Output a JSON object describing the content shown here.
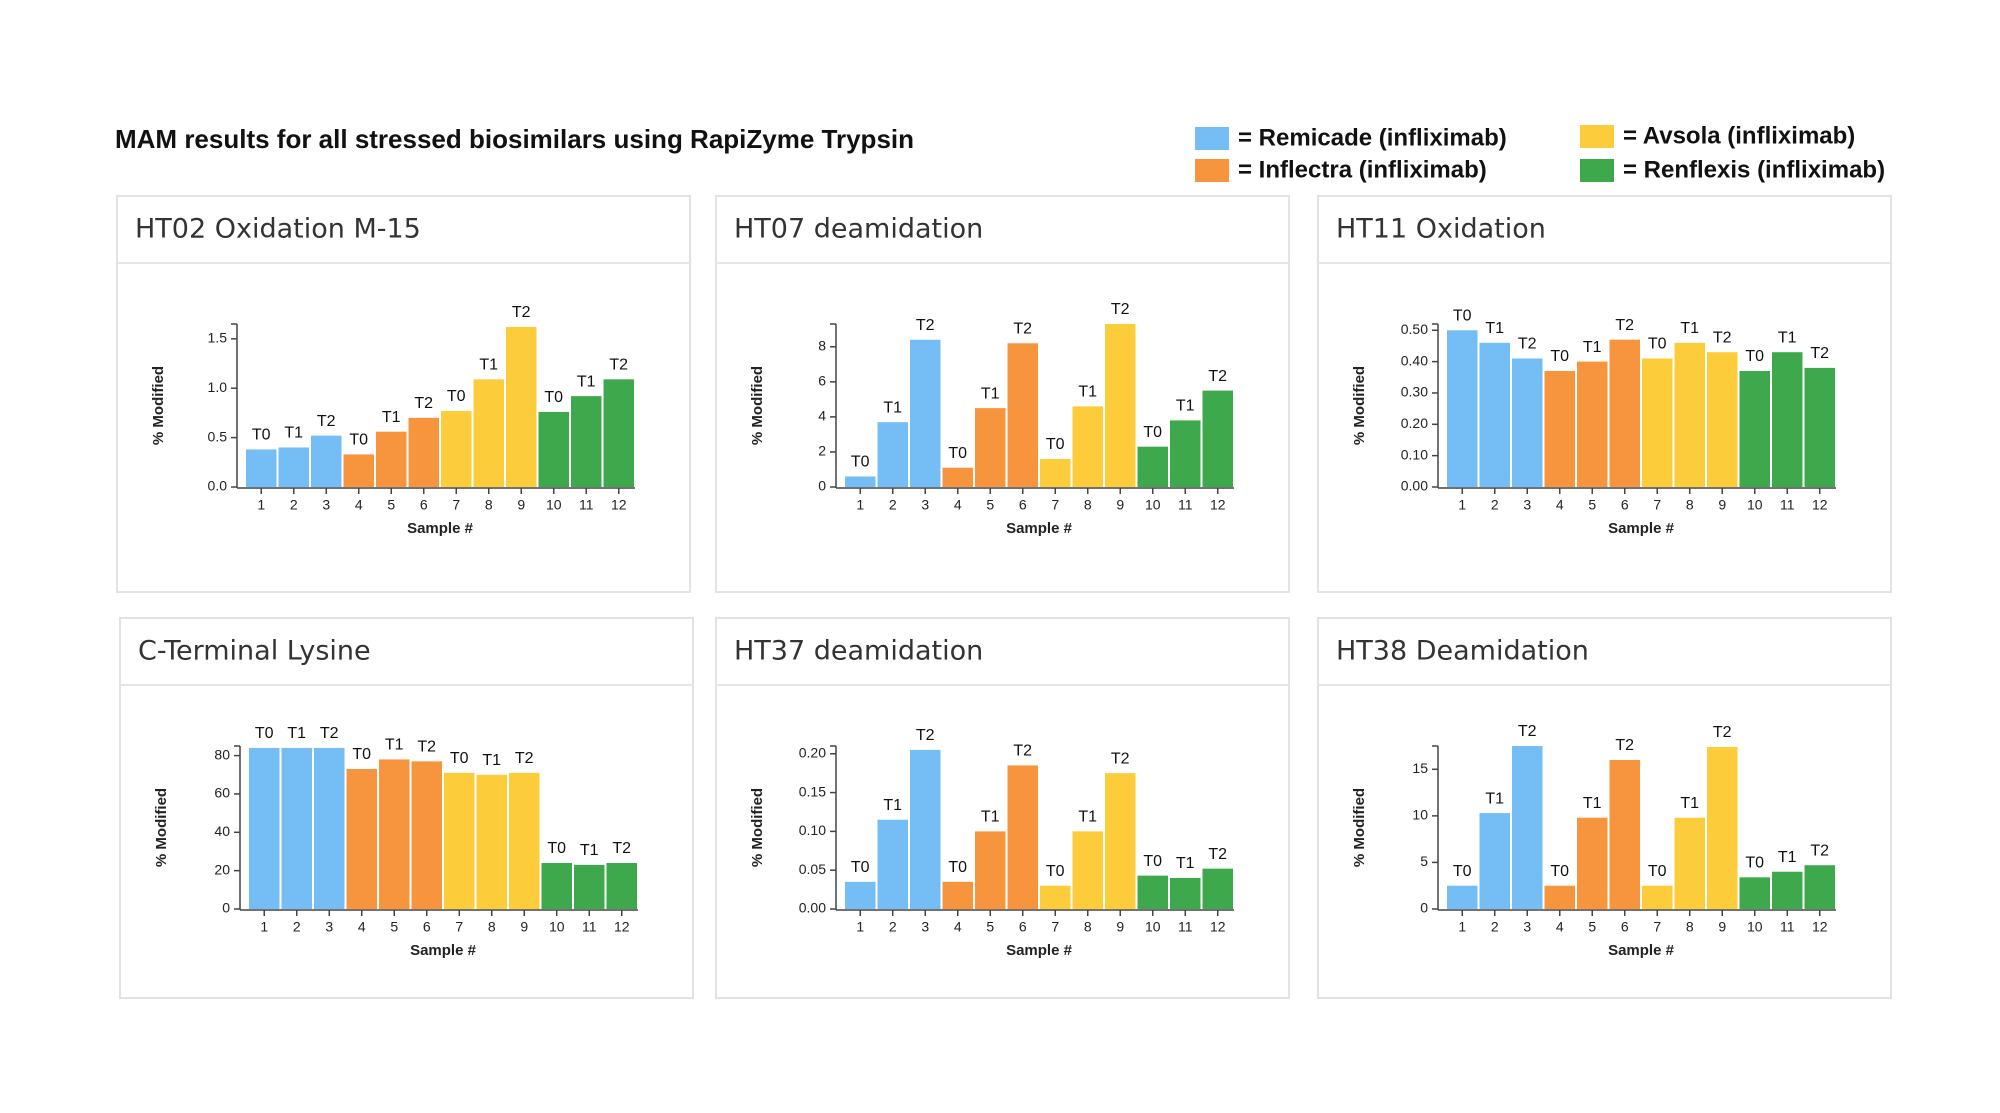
{
  "title": "MAM results for all stressed biosimilars using RapiZyme Trypsin",
  "legend": [
    {
      "name": "= Remicade (infliximab)",
      "color": "#75bdf5"
    },
    {
      "name": "= Inflectra (infliximab)",
      "color": "#f7953f"
    },
    {
      "name": "= Avsola (infliximab)",
      "color": "#fdcc3a"
    },
    {
      "name": "= Renflexis (infliximab)",
      "color": "#3ea94c"
    }
  ],
  "chart_data": [
    {
      "type": "bar",
      "title": "HT02 Oxidation M-15",
      "xlabel": "Sample #",
      "ylabel": "% Modified",
      "categories": [
        "1",
        "2",
        "3",
        "4",
        "5",
        "6",
        "7",
        "8",
        "9",
        "10",
        "11",
        "12"
      ],
      "values": [
        0.38,
        0.4,
        0.52,
        0.33,
        0.56,
        0.7,
        0.77,
        1.09,
        1.62,
        0.76,
        0.92,
        1.09
      ],
      "bar_labels": [
        "T0",
        "T1",
        "T2",
        "T0",
        "T1",
        "T2",
        "T0",
        "T1",
        "T2",
        "T0",
        "T1",
        "T2"
      ],
      "colors": [
        "#75bdf5",
        "#75bdf5",
        "#75bdf5",
        "#f7953f",
        "#f7953f",
        "#f7953f",
        "#fdcc3a",
        "#fdcc3a",
        "#fdcc3a",
        "#3ea94c",
        "#3ea94c",
        "#3ea94c"
      ],
      "ylim": [
        0,
        1.65
      ],
      "yticks": [
        {
          "value": 0,
          "label": "0.0"
        },
        0.5,
        {
          "value": 1,
          "label": "1.0"
        },
        1.5
      ]
    },
    {
      "type": "bar",
      "title": "HT07 deamidation",
      "xlabel": "Sample #",
      "ylabel": "% Modified",
      "categories": [
        "1",
        "2",
        "3",
        "4",
        "5",
        "6",
        "7",
        "8",
        "9",
        "10",
        "11",
        "12"
      ],
      "values": [
        0.6,
        3.7,
        8.4,
        1.1,
        4.5,
        8.2,
        1.6,
        4.6,
        9.3,
        2.3,
        3.8,
        5.5
      ],
      "bar_labels": [
        "T0",
        "T1",
        "T2",
        "T0",
        "T1",
        "T2",
        "T0",
        "T1",
        "T2",
        "T0",
        "T1",
        "T2"
      ],
      "colors": [
        "#75bdf5",
        "#75bdf5",
        "#75bdf5",
        "#f7953f",
        "#f7953f",
        "#f7953f",
        "#fdcc3a",
        "#fdcc3a",
        "#fdcc3a",
        "#3ea94c",
        "#3ea94c",
        "#3ea94c"
      ],
      "ylim": [
        0,
        9.3
      ],
      "yticks": [
        0,
        2,
        4,
        6,
        8
      ]
    },
    {
      "type": "bar",
      "title": "HT11 Oxidation",
      "xlabel": "Sample #",
      "ylabel": "% Modified",
      "categories": [
        "1",
        "2",
        "3",
        "4",
        "5",
        "6",
        "7",
        "8",
        "9",
        "10",
        "11",
        "12"
      ],
      "values": [
        0.5,
        0.46,
        0.41,
        0.37,
        0.4,
        0.47,
        0.41,
        0.46,
        0.43,
        0.37,
        0.43,
        0.38
      ],
      "bar_labels": [
        "T0",
        "T1",
        "T2",
        "T0",
        "T1",
        "T2",
        "T0",
        "T1",
        "T2",
        "T0",
        "T1",
        "T2"
      ],
      "colors": [
        "#75bdf5",
        "#75bdf5",
        "#75bdf5",
        "#f7953f",
        "#f7953f",
        "#f7953f",
        "#fdcc3a",
        "#fdcc3a",
        "#fdcc3a",
        "#3ea94c",
        "#3ea94c",
        "#3ea94c"
      ],
      "ylim": [
        0,
        0.52
      ],
      "yticks": [
        {
          "value": 0,
          "label": "0.00"
        },
        {
          "value": 0.1,
          "label": "0.10"
        },
        {
          "value": 0.2,
          "label": "0.20"
        },
        {
          "value": 0.3,
          "label": "0.30"
        },
        {
          "value": 0.4,
          "label": "0.40"
        },
        {
          "value": 0.5,
          "label": "0.50"
        }
      ]
    },
    {
      "type": "bar",
      "title": "C-Terminal Lysine",
      "xlabel": "Sample #",
      "ylabel": "% Modified",
      "categories": [
        "1",
        "2",
        "3",
        "4",
        "5",
        "6",
        "7",
        "8",
        "9",
        "10",
        "11",
        "12"
      ],
      "values": [
        84,
        84,
        84,
        73,
        78,
        77,
        71,
        70,
        71,
        24,
        23,
        24
      ],
      "bar_labels": [
        "T0",
        "T1",
        "T2",
        "T0",
        "T1",
        "T2",
        "T0",
        "T1",
        "T2",
        "T0",
        "T1",
        "T2"
      ],
      "colors": [
        "#75bdf5",
        "#75bdf5",
        "#75bdf5",
        "#f7953f",
        "#f7953f",
        "#f7953f",
        "#fdcc3a",
        "#fdcc3a",
        "#fdcc3a",
        "#3ea94c",
        "#3ea94c",
        "#3ea94c"
      ],
      "ylim": [
        0,
        85
      ],
      "yticks": [
        0,
        20,
        40,
        60,
        80
      ]
    },
    {
      "type": "bar",
      "title": "HT37 deamidation",
      "xlabel": "Sample #",
      "ylabel": "% Modified",
      "categories": [
        "1",
        "2",
        "3",
        "4",
        "5",
        "6",
        "7",
        "8",
        "9",
        "10",
        "11",
        "12"
      ],
      "values": [
        0.035,
        0.115,
        0.205,
        0.035,
        0.1,
        0.185,
        0.03,
        0.1,
        0.175,
        0.043,
        0.04,
        0.052
      ],
      "bar_labels": [
        "T0",
        "T1",
        "T2",
        "T0",
        "T1",
        "T2",
        "T0",
        "T1",
        "T2",
        "T0",
        "T1",
        "T2"
      ],
      "colors": [
        "#75bdf5",
        "#75bdf5",
        "#75bdf5",
        "#f7953f",
        "#f7953f",
        "#f7953f",
        "#fdcc3a",
        "#fdcc3a",
        "#fdcc3a",
        "#3ea94c",
        "#3ea94c",
        "#3ea94c"
      ],
      "ylim": [
        0,
        0.21
      ],
      "yticks": [
        {
          "value": 0,
          "label": "0.00"
        },
        {
          "value": 0.05,
          "label": "0.05"
        },
        {
          "value": 0.1,
          "label": "0.10"
        },
        {
          "value": 0.15,
          "label": "0.15"
        },
        {
          "value": 0.2,
          "label": "0.20"
        }
      ]
    },
    {
      "type": "bar",
      "title": "HT38 Deamidation",
      "xlabel": "Sample #",
      "ylabel": "% Modified",
      "categories": [
        "1",
        "2",
        "3",
        "4",
        "5",
        "6",
        "7",
        "8",
        "9",
        "10",
        "11",
        "12"
      ],
      "values": [
        2.5,
        10.3,
        17.5,
        2.5,
        9.8,
        16,
        2.5,
        9.8,
        17.4,
        3.4,
        4,
        4.7
      ],
      "bar_labels": [
        "T0",
        "T1",
        "T2",
        "T0",
        "T1",
        "T2",
        "T0",
        "T1",
        "T2",
        "T0",
        "T1",
        "T2"
      ],
      "colors": [
        "#75bdf5",
        "#75bdf5",
        "#75bdf5",
        "#f7953f",
        "#f7953f",
        "#f7953f",
        "#fdcc3a",
        "#fdcc3a",
        "#fdcc3a",
        "#3ea94c",
        "#3ea94c",
        "#3ea94c"
      ],
      "ylim": [
        0,
        17.5
      ],
      "yticks": [
        0,
        5,
        10,
        15
      ]
    }
  ]
}
